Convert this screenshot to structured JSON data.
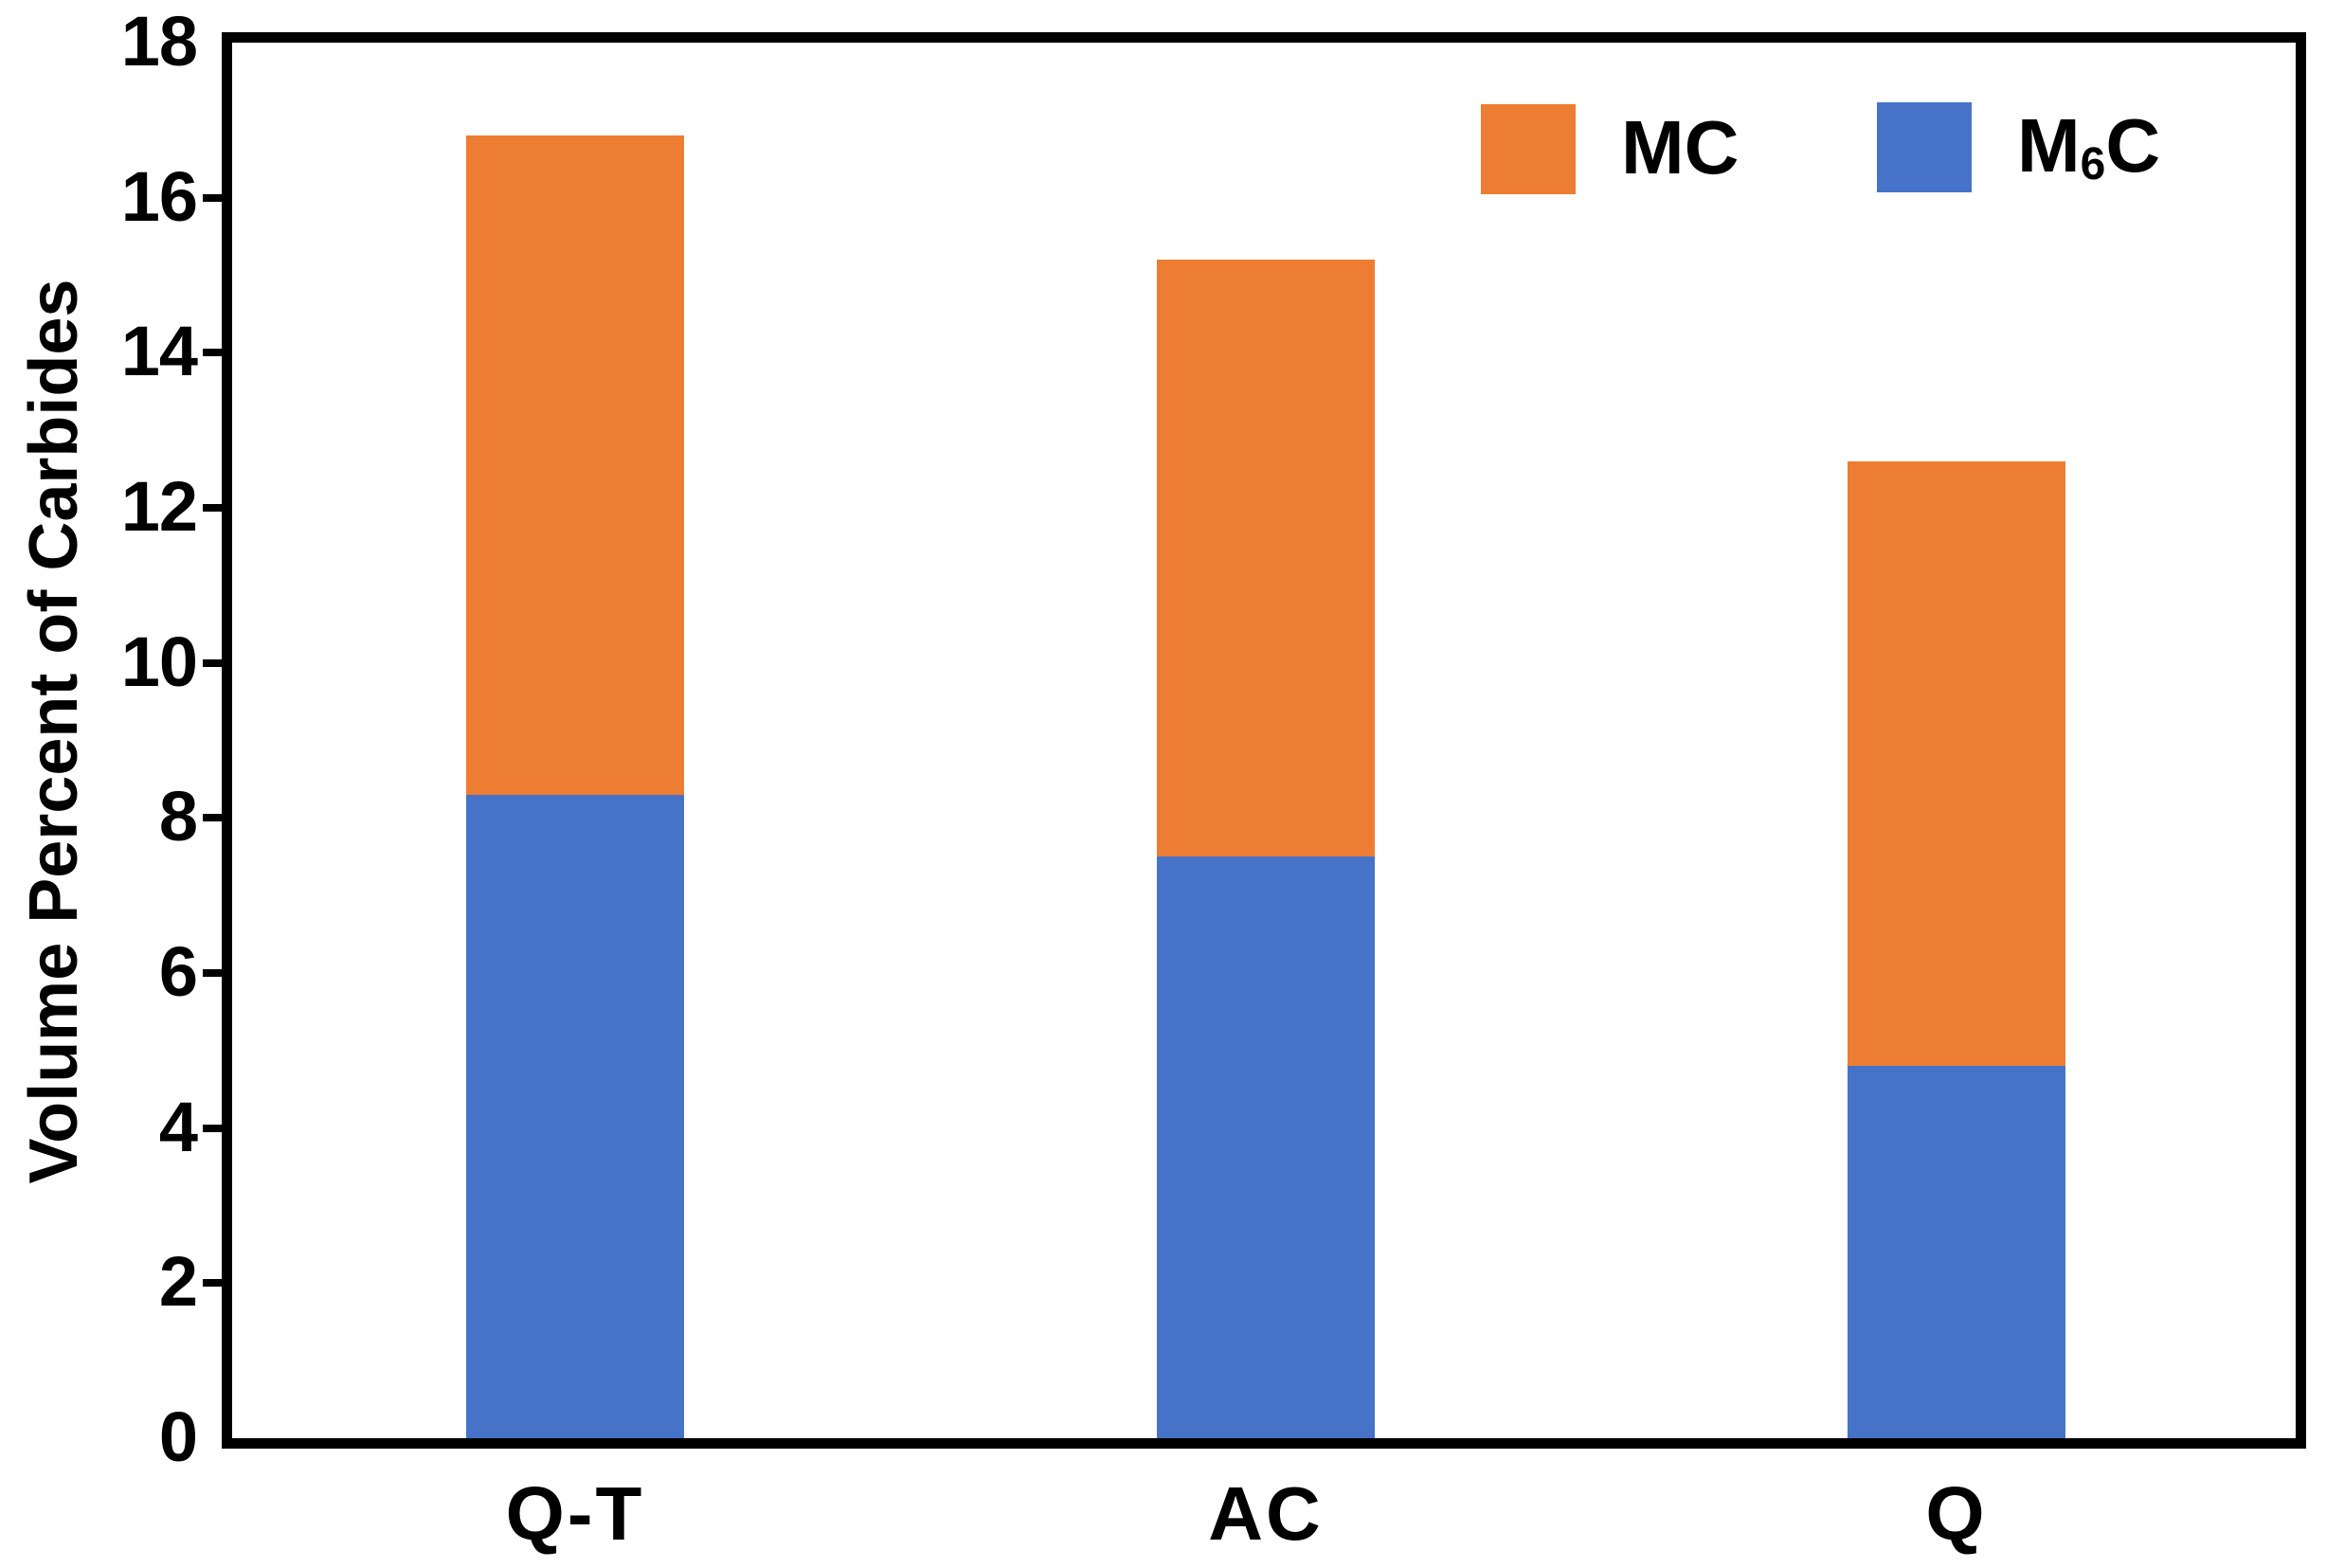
{
  "chart_data": {
    "type": "bar",
    "stacked": true,
    "title": "",
    "categories": [
      "Q-T",
      "AC",
      "Q"
    ],
    "series": [
      {
        "name": "M6C",
        "color": "#4673C8",
        "values": [
          8.3,
          7.5,
          4.8
        ]
      },
      {
        "name": "MC",
        "color": "#ED7D33",
        "values": [
          8.5,
          7.7,
          7.8
        ]
      }
    ],
    "stack_totals": [
      16.8,
      15.2,
      12.6
    ],
    "xlabel": "",
    "ylabel": "Volume Percent of Carbides",
    "ylim": [
      0,
      18
    ],
    "ytick_step": 2,
    "ytick_labels": [
      "0",
      "2",
      "4",
      "6",
      "8",
      "10",
      "12",
      "14",
      "16",
      "18"
    ],
    "grid": false,
    "legend_position": "top-right-inside",
    "legend_order_left_to_right": [
      "MC",
      "M6C"
    ]
  },
  "axes": {
    "ylabel": "Volume Percent of Carbides",
    "xtick_labels": [
      "Q-T",
      "AC",
      "Q"
    ]
  },
  "legend": {
    "items": [
      {
        "pre": "MC",
        "sub": "",
        "post": "",
        "color": "#ED7D33"
      },
      {
        "pre": "M",
        "sub": "6",
        "post": "C",
        "color": "#4673C8"
      }
    ]
  },
  "colors": {
    "axis": "#000000",
    "background": "#FFFFFF",
    "mc_orange": "#ED7D33",
    "m6c_blue": "#4673C8"
  }
}
